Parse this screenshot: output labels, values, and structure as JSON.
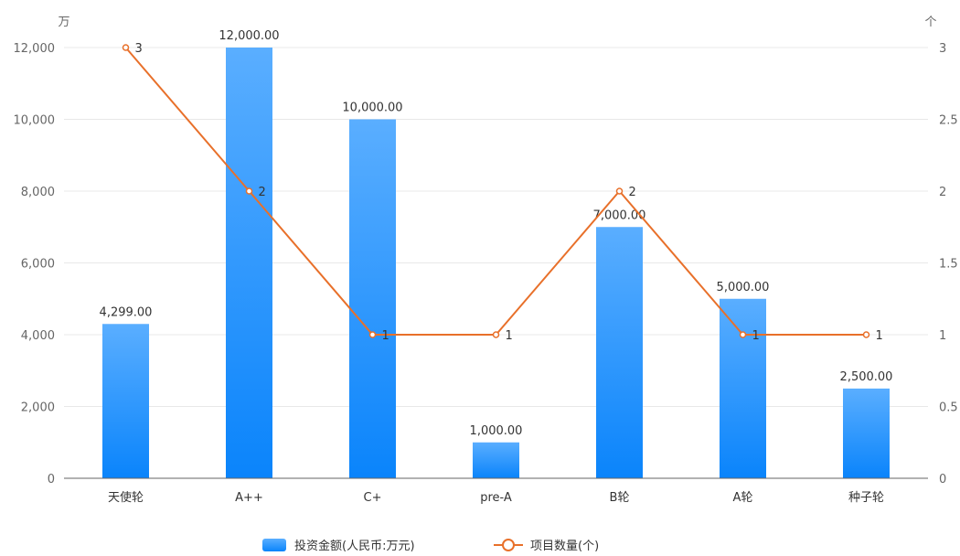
{
  "chart_data": {
    "type": "bar",
    "categories": [
      "天使轮",
      "A++",
      "C+",
      "pre-A",
      "B轮",
      "A轮",
      "种子轮"
    ],
    "series": [
      {
        "name": "投资金额(人民币:万元)",
        "type": "bar",
        "axis": "left",
        "values": [
          4299,
          12000,
          10000,
          1000,
          7000,
          5000,
          2500
        ],
        "labels": [
          "4,299.00",
          "12,000.00",
          "10,000.00",
          "1,000.00",
          "7,000.00",
          "5,000.00",
          "2,500.00"
        ],
        "color": "#1890ff"
      },
      {
        "name": "项目数量(个)",
        "type": "line",
        "axis": "right",
        "values": [
          3,
          2,
          1,
          1,
          2,
          1,
          1
        ],
        "labels": [
          "3",
          "2",
          "1",
          "1",
          "2",
          "1",
          "1"
        ],
        "color": "#e8702a"
      }
    ],
    "y_left": {
      "unit": "万",
      "ylim": [
        0,
        12000
      ],
      "ticks": [
        0,
        2000,
        4000,
        6000,
        8000,
        10000,
        12000
      ],
      "tick_labels": [
        "0",
        "2,000",
        "4,000",
        "6,000",
        "8,000",
        "10,000",
        "12,000"
      ]
    },
    "y_right": {
      "unit": "个",
      "ylim": [
        0,
        3
      ],
      "ticks": [
        0,
        0.5,
        1,
        1.5,
        2,
        2.5,
        3
      ],
      "tick_labels": [
        "0",
        "0.5",
        "1",
        "1.5",
        "2",
        "2.5",
        "3"
      ]
    },
    "grid": true,
    "legend_position": "bottom-center"
  }
}
